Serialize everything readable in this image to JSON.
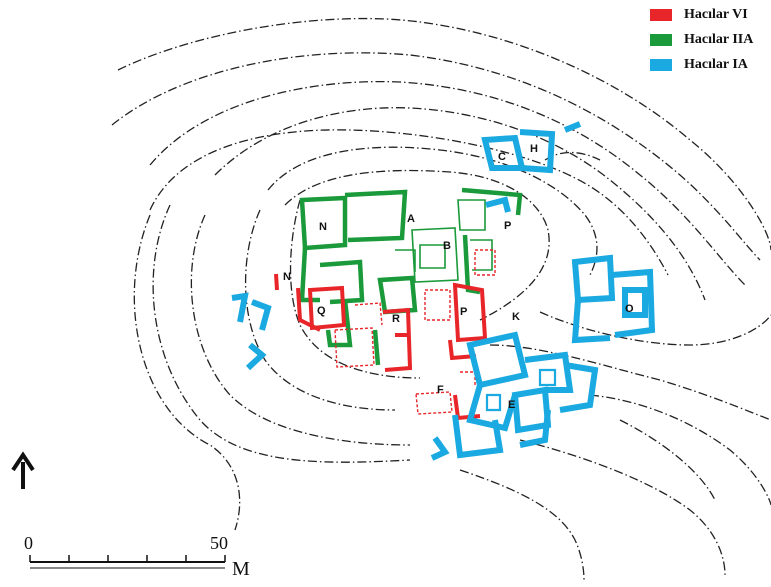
{
  "legend": [
    {
      "label": "Hacılar VI",
      "color": "#e8262a"
    },
    {
      "label": "Hacılar IIA",
      "color": "#1a9a3a"
    },
    {
      "label": "Hacılar IA",
      "color": "#1aa9e0"
    }
  ],
  "area_labels": {
    "a": "A",
    "b": "B",
    "c": "C",
    "e": "E",
    "f": "F",
    "h": "H",
    "k": "K",
    "n_upper": "N",
    "n_lower": "N",
    "o": "O",
    "p_upper": "P",
    "p_lower": "P",
    "q": "Q",
    "r": "R"
  },
  "scale": {
    "start": "0",
    "end": "50",
    "unit": "M"
  },
  "north_icon": "north-arrow-icon"
}
